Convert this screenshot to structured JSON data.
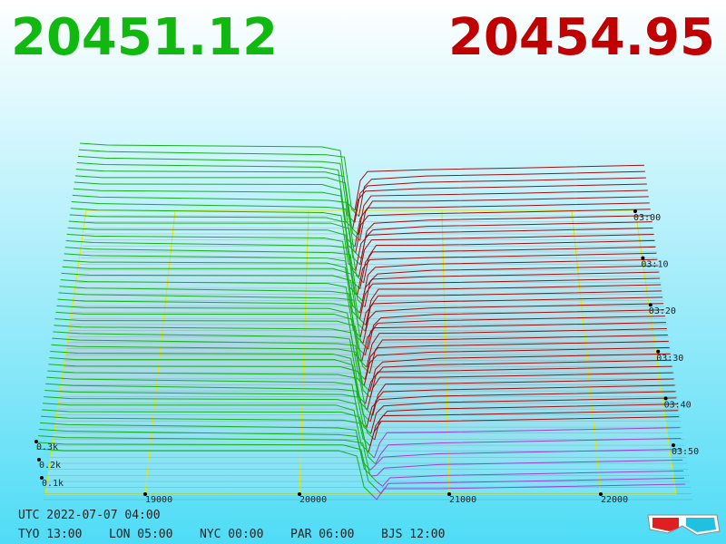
{
  "prices": {
    "bid": "20451.12",
    "ask": "20454.95"
  },
  "depth_axis": {
    "labels": [
      "0.3k",
      "0.2k",
      "0.1k"
    ]
  },
  "price_axis": {
    "labels": [
      "19000",
      "20000",
      "21000",
      "22000"
    ]
  },
  "time_axis": {
    "labels": [
      "03:00",
      "03:10",
      "03:20",
      "03:30",
      "03:40",
      "03:50"
    ]
  },
  "clock": {
    "utc": "UTC 2022-07-07 04:00",
    "zones": [
      "TYO 13:00",
      "LON 05:00",
      "NYC 00:00",
      "PAR 06:00",
      "BJS 12:00"
    ]
  }
}
